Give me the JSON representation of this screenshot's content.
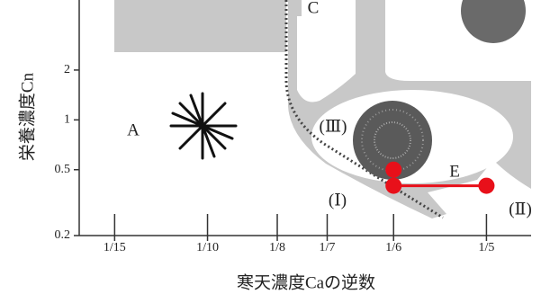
{
  "chart_data": {
    "type": "scatter",
    "xlabel": "寒天濃度Caの逆数",
    "ylabel": "栄養濃度Cn",
    "yscale": "log",
    "xlim": [
      0.054,
      0.216
    ],
    "ylim": [
      0.2,
      5.3
    ],
    "xticks": [
      {
        "value": 0.0667,
        "label": "1/15"
      },
      {
        "value": 0.1,
        "label": "1/10"
      },
      {
        "value": 0.125,
        "label": "1/8"
      },
      {
        "value": 0.1429,
        "label": "1/7"
      },
      {
        "value": 0.1667,
        "label": "1/6"
      },
      {
        "value": 0.2,
        "label": "1/5"
      }
    ],
    "yticks": [
      0.2,
      0.5,
      1,
      2
    ],
    "series": [
      {
        "color": "#e8101a",
        "connected": false,
        "x": [
          0.1667
        ],
        "values": [
          0.5
        ]
      },
      {
        "color": "#e8101a",
        "connected": true,
        "x": [
          0.1667,
          0.2
        ],
        "values": [
          0.4,
          0.4
        ]
      }
    ],
    "annotations": [
      "A",
      "C",
      "E",
      "(Ⅰ)",
      "(Ⅱ)",
      "(Ⅲ)"
    ]
  }
}
